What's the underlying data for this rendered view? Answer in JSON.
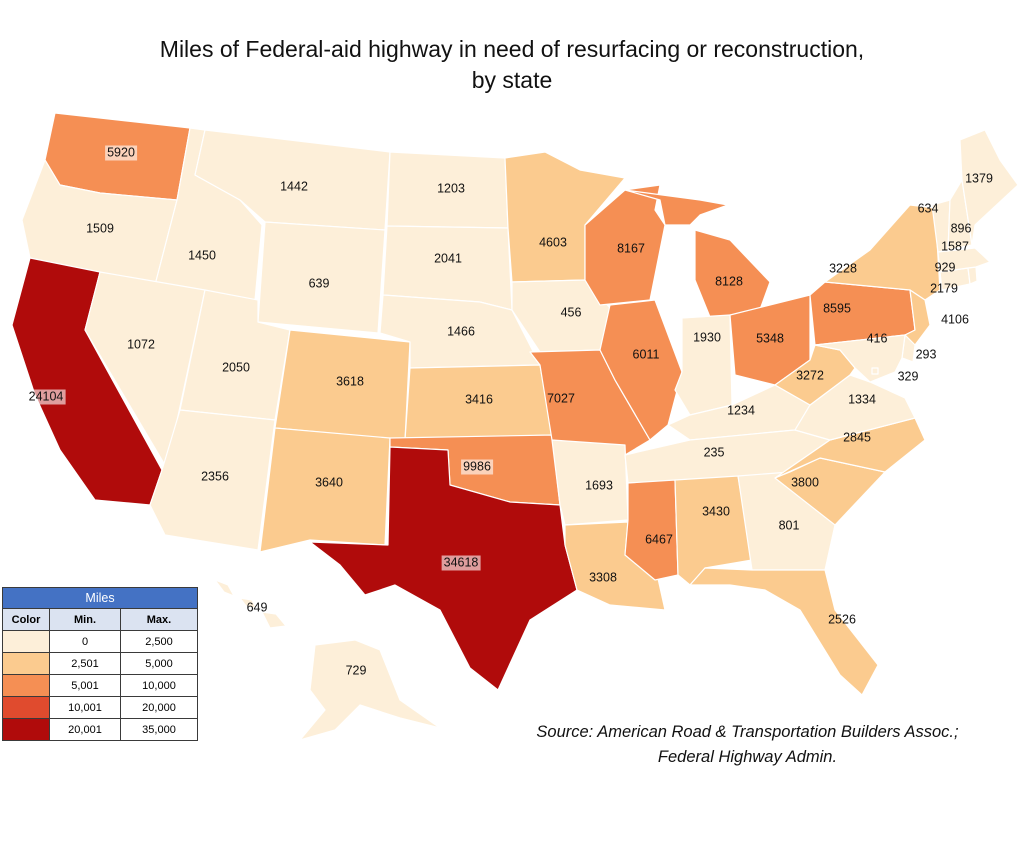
{
  "title": {
    "line1": "Miles of Federal-aid highway in need of resurfacing or reconstruction,",
    "line2": "by state"
  },
  "map_data": {
    "type": "choropleth",
    "unit": "Miles",
    "colors": {
      "b1": "#fdefd9",
      "b2": "#fbcb8f",
      "b3": "#f58f54",
      "b4": "#e04b2e",
      "b5": "#b00b0b"
    },
    "states": {
      "WA": 5920,
      "OR": 1509,
      "CA": 24104,
      "ID": 1450,
      "NV": 1072,
      "MT": 1442,
      "WY": 639,
      "UT": 2050,
      "AZ": 2356,
      "CO": 3618,
      "NM": 3640,
      "ND": 1203,
      "SD": 2041,
      "NE": 1466,
      "KS": 3416,
      "OK": 9986,
      "TX": 34618,
      "MN": 4603,
      "IA": 456,
      "MO": 7027,
      "AR": 1693,
      "LA": 3308,
      "WI": 8167,
      "IL": 6011,
      "MI": 8128,
      "IN": 1930,
      "OH": 5348,
      "KY": 1234,
      "TN": 235,
      "MS": 6467,
      "AL": 3430,
      "GA": 801,
      "FL": 2526,
      "SC": 3800,
      "NC": 2845,
      "VA": 1334,
      "WV": 3272,
      "PA": 8595,
      "NY": 3228,
      "NJ": 4106,
      "DE": 416,
      "MD": 293,
      "DC": 329,
      "CT": 2179,
      "RI": 929,
      "MA": 1587,
      "VT": 634,
      "NH": 896,
      "ME": 1379,
      "AK": 729,
      "HI": 649
    }
  },
  "legend": {
    "title": "Miles",
    "headers": [
      "Color",
      "Min.",
      "Max."
    ],
    "rows": [
      {
        "min": "0",
        "max": "2,500",
        "color": "#fdefd9"
      },
      {
        "min": "2,501",
        "max": "5,000",
        "color": "#fbcb8f"
      },
      {
        "min": "5,001",
        "max": "10,000",
        "color": "#f58f54"
      },
      {
        "min": "10,001",
        "max": "20,000",
        "color": "#e04b2e"
      },
      {
        "min": "20,001",
        "max": "35,000",
        "color": "#b00b0b"
      }
    ]
  },
  "source": {
    "line1": "Source: American Road & Transportation Builders Assoc.;",
    "line2": "Federal Highway Admin."
  }
}
